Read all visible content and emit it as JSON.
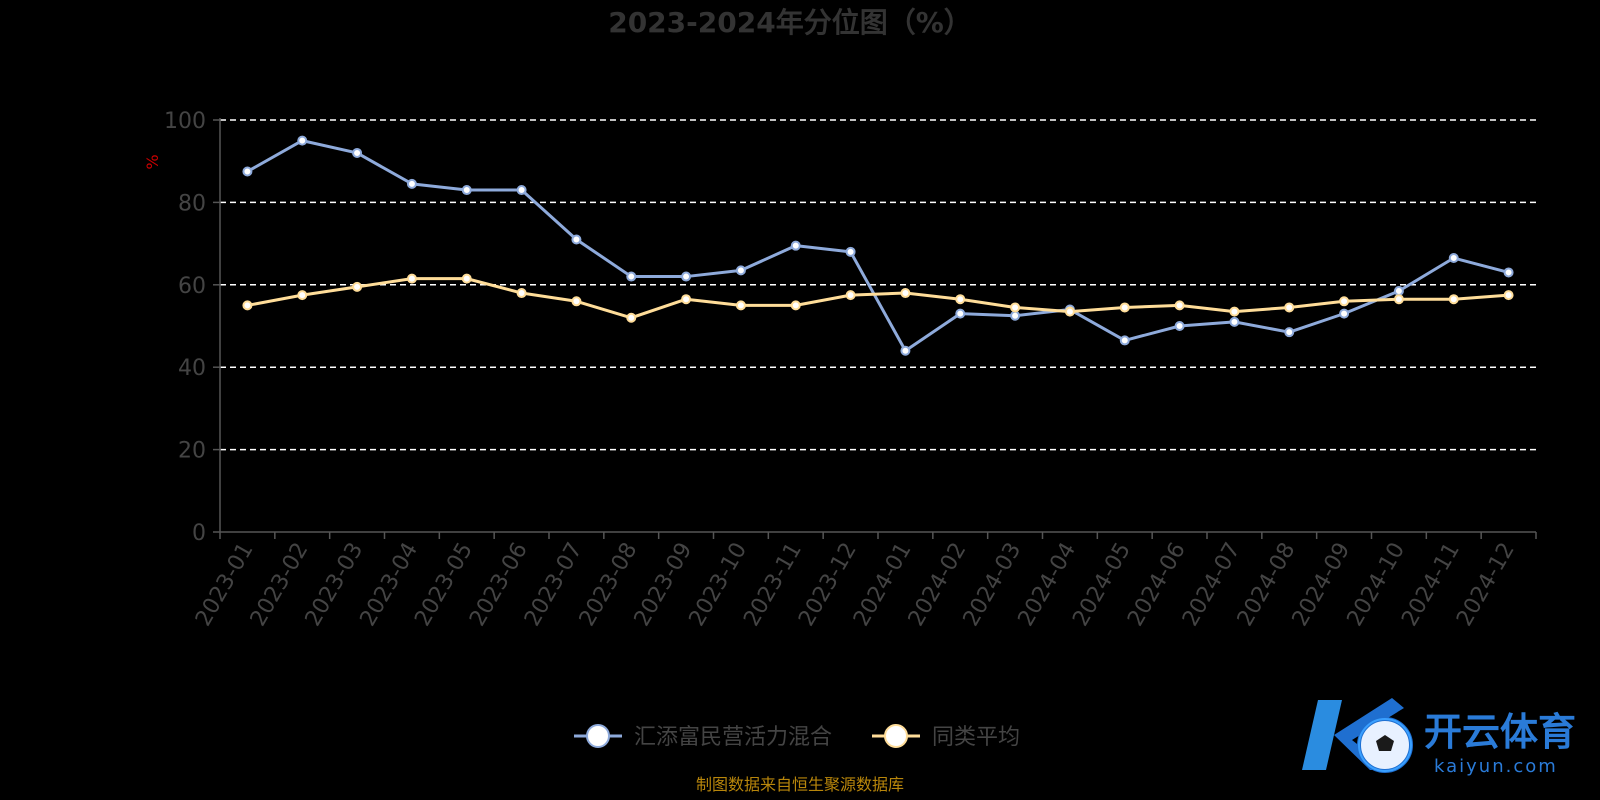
{
  "chart_data": {
    "type": "line",
    "title": "2023-2024年分位图（%）",
    "ylabel": "%",
    "xlabel": "",
    "ylim": [
      0,
      100
    ],
    "yticks": [
      0,
      20,
      40,
      60,
      80,
      100
    ],
    "grid": true,
    "legend_position": "bottom",
    "categories": [
      "2023-01",
      "2023-02",
      "2023-03",
      "2023-04",
      "2023-05",
      "2023-06",
      "2023-07",
      "2023-08",
      "2023-09",
      "2023-10",
      "2023-11",
      "2023-12",
      "2024-01",
      "2024-02",
      "2024-03",
      "2024-04",
      "2024-05",
      "2024-06",
      "2024-07",
      "2024-08",
      "2024-09",
      "2024-10",
      "2024-11",
      "2024-12"
    ],
    "series": [
      {
        "name": "汇添富民营活力混合",
        "color": "#8eaadb",
        "values": [
          87.5,
          95,
          92,
          84.5,
          83,
          83,
          71,
          62,
          62,
          63.5,
          69.5,
          68,
          44,
          53,
          52.5,
          54,
          46.5,
          50,
          51,
          48.5,
          53,
          58.5,
          66.5,
          63
        ]
      },
      {
        "name": "同类平均",
        "color": "#ffdd99",
        "values": [
          55,
          57.5,
          59.5,
          61.5,
          61.5,
          58,
          56,
          52,
          56.5,
          55,
          55,
          57.5,
          58,
          56.5,
          54.5,
          53.5,
          54.5,
          55,
          53.5,
          54.5,
          56,
          56.5,
          56.5,
          57.5
        ]
      }
    ]
  },
  "source_note": "制图数据来自恒生聚源数据库",
  "watermark": {
    "brand": "开云体育",
    "domain": "kaiyun.com"
  }
}
